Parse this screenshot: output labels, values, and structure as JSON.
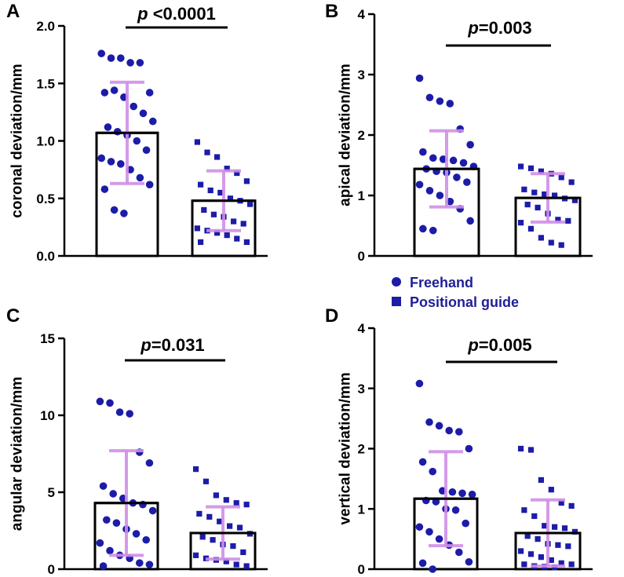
{
  "legend": {
    "items": [
      {
        "label": "Freehand",
        "marker": "circle"
      },
      {
        "label": "Positional guide",
        "marker": "square"
      }
    ],
    "text_color": "#1f1f96"
  },
  "colors": {
    "marker": "#1c1ca8",
    "error_bar": "#cf8fe6",
    "bar_edge": "#000000",
    "axis": "#000000"
  },
  "chart_data": [
    {
      "panel": "A",
      "type": "bar",
      "ylabel": "coronal deviation/mm",
      "ylim": [
        0,
        2.0
      ],
      "yticks": [
        0.0,
        0.5,
        1.0,
        1.5,
        2.0
      ],
      "ytick_labels": [
        "0.0",
        "0.5",
        "1.0",
        "1.5",
        "2.0"
      ],
      "categories": [
        "Freehand",
        "Positional guide"
      ],
      "p_prefix": "p",
      "p_suffix": " <0.0001",
      "series": [
        {
          "name": "Freehand",
          "mean": 1.07,
          "sd": 0.44,
          "points": [
            1.76,
            1.72,
            1.72,
            1.68,
            1.68,
            1.42,
            1.42,
            1.44,
            1.38,
            1.3,
            1.24,
            1.17,
            1.12,
            1.08,
            1.05,
            1.0,
            0.92,
            0.85,
            0.82,
            0.8,
            0.75,
            0.68,
            0.62,
            0.58,
            0.4,
            0.37
          ]
        },
        {
          "name": "Positional guide",
          "mean": 0.48,
          "sd": 0.26,
          "points": [
            0.99,
            0.9,
            0.86,
            0.76,
            0.72,
            0.65,
            0.62,
            0.57,
            0.55,
            0.5,
            0.48,
            0.45,
            0.4,
            0.36,
            0.34,
            0.3,
            0.28,
            0.24,
            0.22,
            0.2,
            0.18,
            0.15,
            0.12,
            0.12
          ]
        }
      ]
    },
    {
      "panel": "B",
      "type": "bar",
      "ylabel": "apical deviation/mm",
      "ylim": [
        0,
        4
      ],
      "yticks": [
        0,
        1,
        2,
        3,
        4
      ],
      "ytick_labels": [
        "0",
        "1",
        "2",
        "3",
        "4"
      ],
      "categories": [
        "Freehand",
        "Positional guide"
      ],
      "p_prefix": "p",
      "p_suffix": "=0.003",
      "series": [
        {
          "name": "Freehand",
          "mean": 1.44,
          "sd": 0.63,
          "points": [
            2.94,
            2.62,
            2.56,
            2.52,
            2.1,
            1.84,
            1.72,
            1.62,
            1.6,
            1.58,
            1.54,
            1.48,
            1.44,
            1.4,
            1.38,
            1.3,
            1.22,
            1.18,
            1.08,
            1.0,
            0.9,
            0.78,
            0.58,
            0.45,
            0.42
          ]
        },
        {
          "name": "Positional guide",
          "mean": 0.96,
          "sd": 0.4,
          "points": [
            1.48,
            1.45,
            1.4,
            1.36,
            1.3,
            1.22,
            1.1,
            1.05,
            1.02,
            1.0,
            0.95,
            0.92,
            0.85,
            0.8,
            0.7,
            0.6,
            0.58,
            0.55,
            0.45,
            0.3,
            0.22,
            0.18
          ]
        }
      ]
    },
    {
      "panel": "C",
      "type": "bar",
      "ylabel": "angular deviation/mm",
      "ylim": [
        0,
        15
      ],
      "yticks": [
        0,
        5,
        10,
        15
      ],
      "ytick_labels": [
        "0",
        "5",
        "10",
        "15"
      ],
      "categories": [
        "Freehand",
        "Positional guide"
      ],
      "p_prefix": "p",
      "p_suffix": "=0.031",
      "series": [
        {
          "name": "Freehand",
          "mean": 4.3,
          "sd": 3.4,
          "points": [
            10.9,
            10.8,
            10.2,
            10.1,
            7.6,
            6.9,
            5.4,
            4.9,
            4.6,
            4.3,
            4.2,
            3.8,
            3.2,
            3.0,
            2.6,
            2.3,
            1.9,
            1.7,
            1.2,
            0.9,
            0.7,
            0.4,
            0.3,
            0.2
          ]
        },
        {
          "name": "Positional guide",
          "mean": 2.35,
          "sd": 1.7,
          "points": [
            6.5,
            5.7,
            4.8,
            4.5,
            4.3,
            4.2,
            3.6,
            3.4,
            3.1,
            2.8,
            2.7,
            2.3,
            2.1,
            1.9,
            1.6,
            1.5,
            1.1,
            0.9,
            0.7,
            0.6,
            0.5,
            0.3,
            0.2
          ]
        }
      ]
    },
    {
      "panel": "D",
      "type": "bar",
      "ylabel": "vertical deviation/mm",
      "ylim": [
        0,
        4
      ],
      "yticks": [
        0,
        1,
        2,
        3,
        4
      ],
      "ytick_labels": [
        "0",
        "1",
        "2",
        "3",
        "4"
      ],
      "categories": [
        "Freehand",
        "Positional guide"
      ],
      "p_prefix": "p",
      "p_suffix": "=0.005",
      "series": [
        {
          "name": "Freehand",
          "mean": 1.17,
          "sd": 0.78,
          "points": [
            3.08,
            2.44,
            2.38,
            2.3,
            2.28,
            2.0,
            1.78,
            1.62,
            1.3,
            1.28,
            1.26,
            1.24,
            1.14,
            1.12,
            1.0,
            0.98,
            0.76,
            0.7,
            0.62,
            0.5,
            0.4,
            0.28,
            0.12,
            0.1,
            0.0
          ]
        },
        {
          "name": "Positional guide",
          "mean": 0.6,
          "sd": 0.55,
          "points": [
            2.0,
            1.98,
            1.48,
            1.32,
            1.1,
            1.05,
            0.98,
            0.88,
            0.72,
            0.7,
            0.68,
            0.62,
            0.55,
            0.5,
            0.42,
            0.4,
            0.38,
            0.3,
            0.25,
            0.2,
            0.15,
            0.1,
            0.08,
            0.08,
            0.05,
            0.04,
            0.03
          ]
        }
      ]
    }
  ]
}
